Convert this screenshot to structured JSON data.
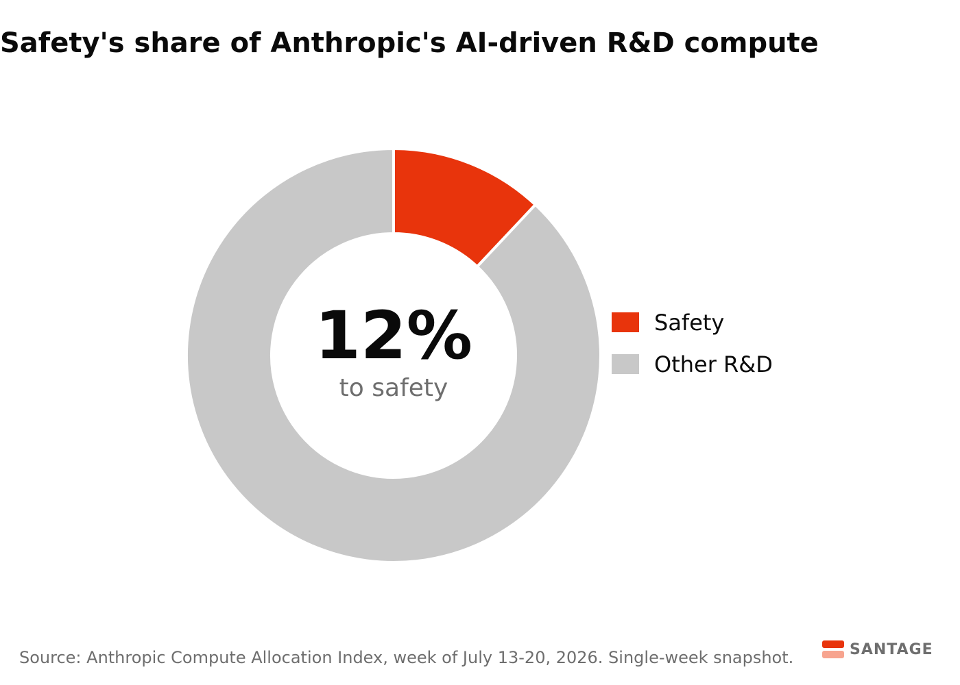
{
  "chart_data": {
    "type": "pie",
    "title": "Safety's share of Anthropic's AI-driven R&D compute",
    "categories": [
      "Safety",
      "Other R&D"
    ],
    "values": [
      12,
      88
    ],
    "colors": [
      "#e8340c",
      "#c8c8c8"
    ],
    "donut": true,
    "center_value": "12%",
    "center_label": "to safety",
    "legend_position": "right"
  },
  "source": "Source: Anthropic Compute Allocation Index, week of July 13-20, 2026. Single-week snapshot.",
  "brand": {
    "name": "SANTAGE",
    "colors": [
      "#e8340c",
      "#f7a48f"
    ]
  }
}
